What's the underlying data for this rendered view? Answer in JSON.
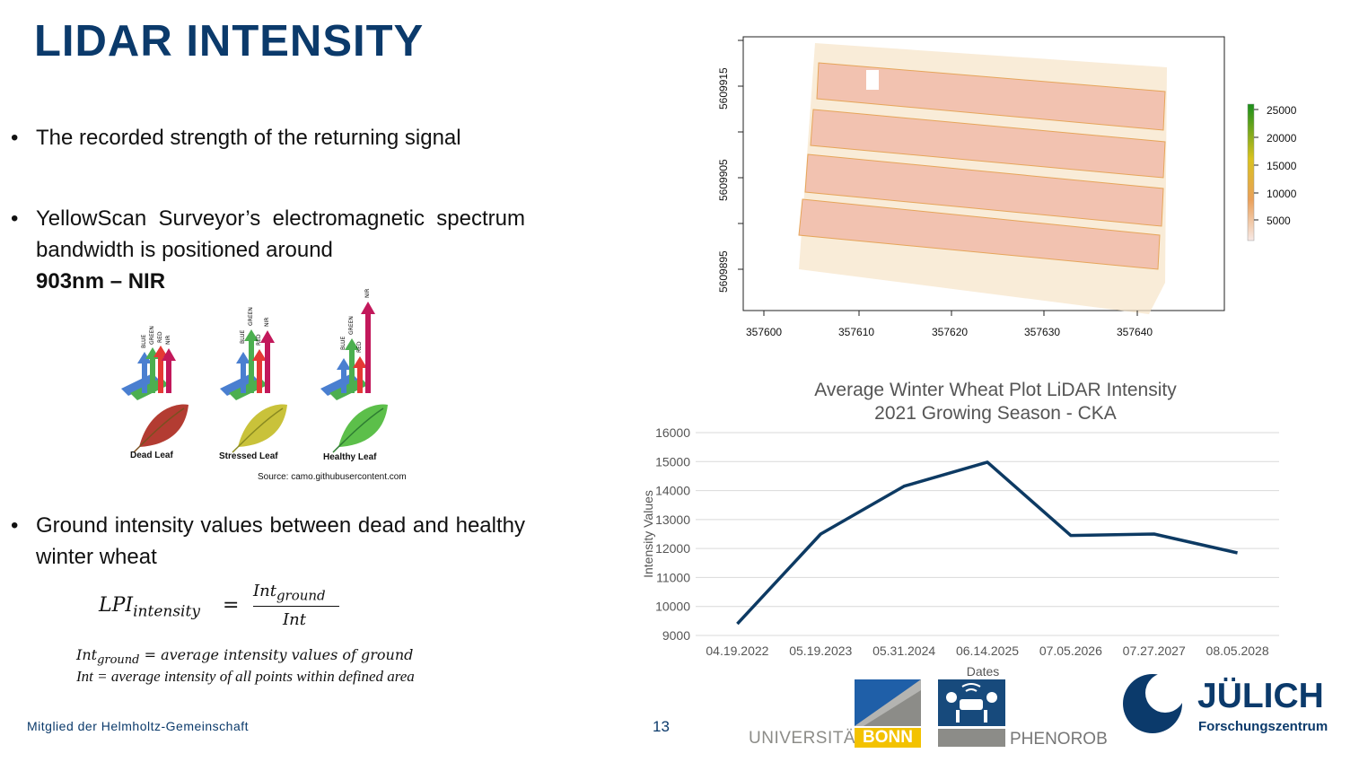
{
  "slide": {
    "title": "LIDAR INTENSITY",
    "bullet1": "The recorded strength of the returning signal",
    "bullet2_line1": "YellowScan Surveyor’s electromagnetic spectrum bandwidth is positioned around",
    "bullet2_bold": "903nm – NIR",
    "bullet3": "Ground intensity values between dead and healthy winter wheat",
    "footer": "Mitglied der Helmholtz-Gemeinschaft",
    "page_number": "13"
  },
  "leaf_figure": {
    "labels": [
      "Dead Leaf",
      "Stressed Leaf",
      "Healthy Leaf"
    ],
    "arrow_labels": [
      "BLUE",
      "GREEN",
      "RED",
      "NIR"
    ],
    "source": "Source: camo.githubusercontent.com",
    "colors": {
      "blue": "#4a7fd0",
      "green": "#4caf50",
      "red": "#e53935",
      "nir": "#c2185b",
      "dead": "#b33c32",
      "stressed": "#c9c23a",
      "healthy": "#5cbf4a"
    }
  },
  "formula": {
    "lhs_main": "LPI",
    "lhs_sub": "intensity",
    "eq": "=",
    "num_main": "Int",
    "num_sub": "ground",
    "den": "Int",
    "def1_main": "Int",
    "def1_sub": "ground",
    "def1_rest": " = average intensity values of ground",
    "def2": "Int = average intensity of all points within defined area"
  },
  "map": {
    "x_ticks": [
      "357600",
      "357610",
      "357620",
      "357630",
      "357640"
    ],
    "y_ticks": [
      "5609915",
      "5609905",
      "5609895"
    ],
    "legend_ticks": [
      "25000",
      "20000",
      "15000",
      "10000",
      "5000"
    ],
    "colors": {
      "high": "#1a8f1a",
      "mid": "#d9c21e",
      "low": "#f0c9bf",
      "plot_fill": "#f2c2b0",
      "plot_speckle": "#e6a55a"
    }
  },
  "chart_data": {
    "type": "line",
    "title_line1": "Average Winter Wheat Plot LiDAR Intensity",
    "title_line2": "2021 Growing Season - CKA",
    "xlabel": "Dates",
    "ylabel": "Intensity Values",
    "categories": [
      "04.19.2022",
      "05.19.2023",
      "05.31.2024",
      "06.14.2025",
      "07.05.2026",
      "07.27.2027",
      "08.05.2028"
    ],
    "y_ticks": [
      "16000",
      "15000",
      "14000",
      "13000",
      "12000",
      "11000",
      "10000",
      "9000"
    ],
    "series": [
      {
        "values": [
          9400,
          12500,
          14150,
          14980,
          12450,
          12500,
          11850
        ]
      }
    ],
    "ylim": [
      9000,
      16000
    ],
    "line_color": "#0d3a63",
    "grid": true
  },
  "logos": {
    "bonn_text1": "UNIVERSITÄT",
    "bonn_text2": "BONN",
    "phenorob_text": "PHENOROB",
    "julich_text": "JÜLICH",
    "julich_sub": "Forschungszentrum"
  }
}
